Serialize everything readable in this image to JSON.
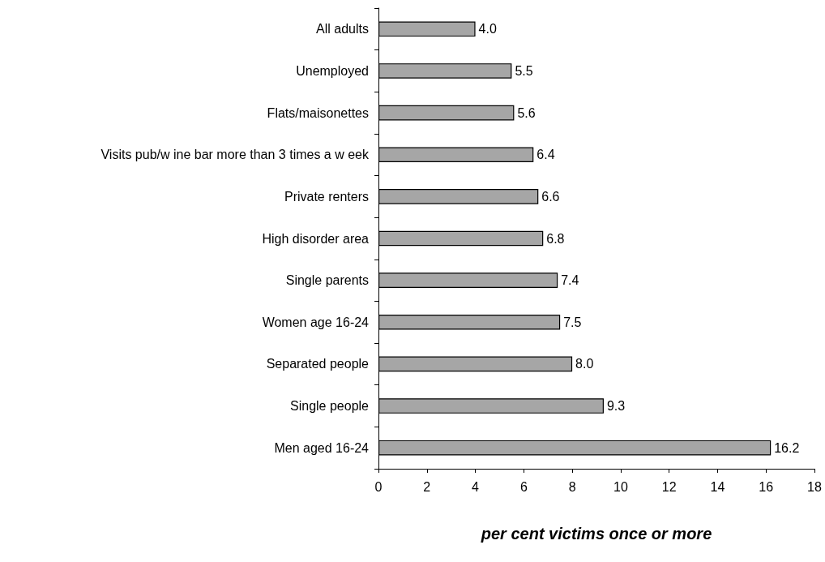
{
  "chart_data": {
    "type": "bar",
    "orientation": "horizontal",
    "xlabel": "per cent victims once or more",
    "categories": [
      "All adults",
      "Unemployed",
      "Flats/maisonettes",
      "Visits pub/w ine bar more than 3 times a w eek",
      "Private renters",
      "High disorder area",
      "Single parents",
      "Women age 16-24",
      "Separated people",
      "Single people",
      "Men aged 16-24"
    ],
    "values": [
      4.0,
      5.5,
      5.6,
      6.4,
      6.6,
      6.8,
      7.4,
      7.5,
      8.0,
      9.3,
      16.2
    ],
    "value_labels": [
      "4.0",
      "5.5",
      "5.6",
      "6.4",
      "6.6",
      "6.8",
      "7.4",
      "7.5",
      "8.0",
      "9.3",
      "16.2"
    ],
    "color": "#a6a6a6",
    "xlim": [
      0,
      18
    ],
    "xticks": [
      0,
      2,
      4,
      6,
      8,
      10,
      12,
      14,
      16,
      18
    ],
    "grid": false
  }
}
